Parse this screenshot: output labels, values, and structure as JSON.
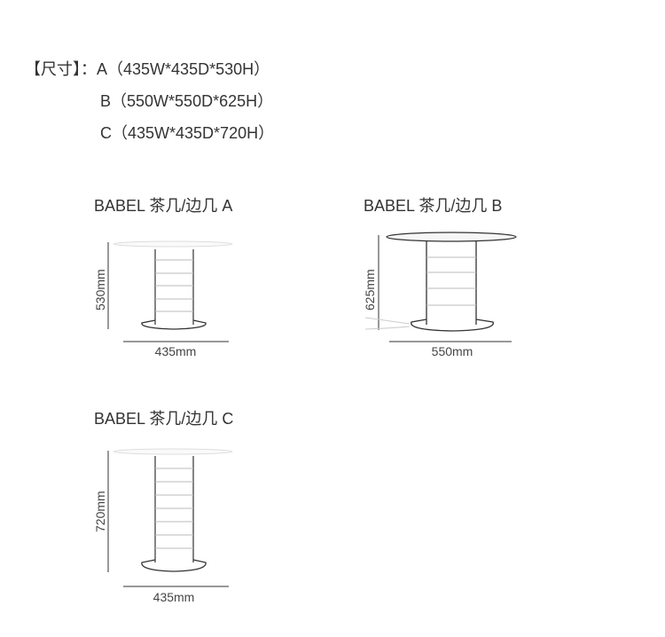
{
  "specs": {
    "label": "【尺寸】",
    "lines": [
      {
        "prefix": "：A",
        "dims": "（435W*435D*530H）"
      },
      {
        "prefix": "B",
        "dims": "（550W*550D*625H）"
      },
      {
        "prefix": "C",
        "dims": "（435W*435D*720H）"
      }
    ]
  },
  "tables": [
    {
      "title": "BABEL 茶几/边几 A",
      "height_label": "530mm",
      "width_label": "435mm"
    },
    {
      "title": "BABEL 茶几/边几 B",
      "height_label": "625mm",
      "width_label": "550mm"
    },
    {
      "title": "BABEL 茶几/边几 C",
      "height_label": "720mm",
      "width_label": "435mm"
    }
  ]
}
